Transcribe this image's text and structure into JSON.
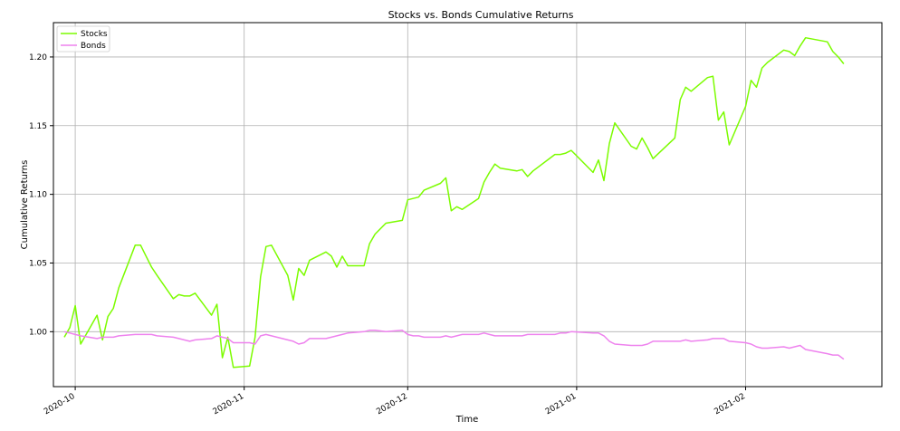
{
  "chart_data": {
    "type": "line",
    "title": "Stocks vs. Bonds Cumulative Returns",
    "xlabel": "Time",
    "ylabel": "Cumulative Returns",
    "xlim": [
      "2020-09-27",
      "2021-02-26"
    ],
    "ylim": [
      0.96,
      1.225
    ],
    "grid": true,
    "legend_position": "top-left",
    "x_ticks": [
      "2020-10-01",
      "2020-11-01",
      "2020-12-01",
      "2021-01-01",
      "2021-02-01"
    ],
    "x_tick_labels": [
      "2020-10",
      "2020-11",
      "2020-12",
      "2021-01",
      "2021-02"
    ],
    "y_ticks": [
      1.0,
      1.05,
      1.1,
      1.15,
      1.2
    ],
    "y_tick_labels": [
      "1.00",
      "1.05",
      "1.10",
      "1.15",
      "1.20"
    ],
    "series": [
      {
        "name": "Stocks",
        "color": "#7cfc00",
        "x": [
          "2020-09-29",
          "2020-09-30",
          "2020-10-01",
          "2020-10-02",
          "2020-10-05",
          "2020-10-06",
          "2020-10-07",
          "2020-10-08",
          "2020-10-09",
          "2020-10-12",
          "2020-10-13",
          "2020-10-14",
          "2020-10-15",
          "2020-10-16",
          "2020-10-19",
          "2020-10-20",
          "2020-10-21",
          "2020-10-22",
          "2020-10-23",
          "2020-10-26",
          "2020-10-27",
          "2020-10-28",
          "2020-10-29",
          "2020-10-30",
          "2020-11-02",
          "2020-11-03",
          "2020-11-04",
          "2020-11-05",
          "2020-11-06",
          "2020-11-09",
          "2020-11-10",
          "2020-11-11",
          "2020-11-12",
          "2020-11-13",
          "2020-11-16",
          "2020-11-17",
          "2020-11-18",
          "2020-11-19",
          "2020-11-20",
          "2020-11-23",
          "2020-11-24",
          "2020-11-25",
          "2020-11-27",
          "2020-11-30",
          "2020-12-01",
          "2020-12-02",
          "2020-12-03",
          "2020-12-04",
          "2020-12-07",
          "2020-12-08",
          "2020-12-09",
          "2020-12-10",
          "2020-12-11",
          "2020-12-14",
          "2020-12-15",
          "2020-12-16",
          "2020-12-17",
          "2020-12-18",
          "2020-12-21",
          "2020-12-22",
          "2020-12-23",
          "2020-12-24",
          "2020-12-28",
          "2020-12-29",
          "2020-12-30",
          "2020-12-31",
          "2021-01-04",
          "2021-01-05",
          "2021-01-06",
          "2021-01-07",
          "2021-01-08",
          "2021-01-11",
          "2021-01-12",
          "2021-01-13",
          "2021-01-14",
          "2021-01-15",
          "2021-01-19",
          "2021-01-20",
          "2021-01-21",
          "2021-01-22",
          "2021-01-25",
          "2021-01-26",
          "2021-01-27",
          "2021-01-28",
          "2021-01-29",
          "2021-02-01",
          "2021-02-02",
          "2021-02-03",
          "2021-02-04",
          "2021-02-05",
          "2021-02-08",
          "2021-02-09",
          "2021-02-10",
          "2021-02-11",
          "2021-02-12",
          "2021-02-16",
          "2021-02-17",
          "2021-02-18",
          "2021-02-19"
        ],
        "values": [
          0.996,
          1.003,
          1.019,
          0.991,
          1.012,
          0.994,
          1.011,
          1.017,
          1.032,
          1.063,
          1.063,
          1.055,
          1.047,
          1.041,
          1.024,
          1.027,
          1.026,
          1.026,
          1.028,
          1.012,
          1.02,
          0.981,
          0.996,
          0.974,
          0.975,
          0.996,
          1.04,
          1.062,
          1.063,
          1.041,
          1.023,
          1.046,
          1.041,
          1.052,
          1.058,
          1.055,
          1.047,
          1.055,
          1.048,
          1.048,
          1.064,
          1.071,
          1.079,
          1.081,
          1.096,
          1.097,
          1.098,
          1.103,
          1.108,
          1.112,
          1.088,
          1.091,
          1.089,
          1.097,
          1.109,
          1.116,
          1.122,
          1.119,
          1.117,
          1.118,
          1.113,
          1.117,
          1.129,
          1.129,
          1.13,
          1.132,
          1.116,
          1.125,
          1.11,
          1.137,
          1.152,
          1.135,
          1.133,
          1.141,
          1.134,
          1.126,
          1.141,
          1.169,
          1.178,
          1.175,
          1.185,
          1.186,
          1.154,
          1.16,
          1.136,
          1.164,
          1.183,
          1.178,
          1.192,
          1.196,
          1.205,
          1.204,
          1.201,
          1.208,
          1.214,
          1.211,
          1.204,
          1.2,
          1.195
        ]
      },
      {
        "name": "Bonds",
        "color": "#ee82ee",
        "x": [
          "2020-09-29",
          "2020-09-30",
          "2020-10-01",
          "2020-10-02",
          "2020-10-05",
          "2020-10-06",
          "2020-10-07",
          "2020-10-08",
          "2020-10-09",
          "2020-10-12",
          "2020-10-13",
          "2020-10-14",
          "2020-10-15",
          "2020-10-16",
          "2020-10-19",
          "2020-10-20",
          "2020-10-21",
          "2020-10-22",
          "2020-10-23",
          "2020-10-26",
          "2020-10-27",
          "2020-10-28",
          "2020-10-29",
          "2020-10-30",
          "2020-11-02",
          "2020-11-03",
          "2020-11-04",
          "2020-11-05",
          "2020-11-06",
          "2020-11-09",
          "2020-11-10",
          "2020-11-11",
          "2020-11-12",
          "2020-11-13",
          "2020-11-16",
          "2020-11-17",
          "2020-11-18",
          "2020-11-19",
          "2020-11-20",
          "2020-11-23",
          "2020-11-24",
          "2020-11-25",
          "2020-11-27",
          "2020-11-30",
          "2020-12-01",
          "2020-12-02",
          "2020-12-03",
          "2020-12-04",
          "2020-12-07",
          "2020-12-08",
          "2020-12-09",
          "2020-12-10",
          "2020-12-11",
          "2020-12-14",
          "2020-12-15",
          "2020-12-16",
          "2020-12-17",
          "2020-12-18",
          "2020-12-21",
          "2020-12-22",
          "2020-12-23",
          "2020-12-24",
          "2020-12-28",
          "2020-12-29",
          "2020-12-30",
          "2020-12-31",
          "2021-01-04",
          "2021-01-05",
          "2021-01-06",
          "2021-01-07",
          "2021-01-08",
          "2021-01-11",
          "2021-01-12",
          "2021-01-13",
          "2021-01-14",
          "2021-01-15",
          "2021-01-19",
          "2021-01-20",
          "2021-01-21",
          "2021-01-22",
          "2021-01-25",
          "2021-01-26",
          "2021-01-27",
          "2021-01-28",
          "2021-01-29",
          "2021-02-01",
          "2021-02-02",
          "2021-02-03",
          "2021-02-04",
          "2021-02-05",
          "2021-02-08",
          "2021-02-09",
          "2021-02-10",
          "2021-02-11",
          "2021-02-12",
          "2021-02-16",
          "2021-02-17",
          "2021-02-18",
          "2021-02-19"
        ],
        "values": [
          1.0,
          0.999,
          0.998,
          0.997,
          0.995,
          0.996,
          0.996,
          0.996,
          0.997,
          0.998,
          0.998,
          0.998,
          0.998,
          0.997,
          0.996,
          0.995,
          0.994,
          0.993,
          0.994,
          0.995,
          0.997,
          0.996,
          0.995,
          0.992,
          0.992,
          0.991,
          0.997,
          0.998,
          0.997,
          0.994,
          0.993,
          0.991,
          0.992,
          0.995,
          0.995,
          0.996,
          0.997,
          0.998,
          0.999,
          1.0,
          1.001,
          1.001,
          1.0,
          1.001,
          0.998,
          0.997,
          0.997,
          0.996,
          0.996,
          0.997,
          0.996,
          0.997,
          0.998,
          0.998,
          0.999,
          0.998,
          0.997,
          0.997,
          0.997,
          0.997,
          0.998,
          0.998,
          0.998,
          0.999,
          0.999,
          1.0,
          0.999,
          0.999,
          0.997,
          0.993,
          0.991,
          0.99,
          0.99,
          0.99,
          0.991,
          0.993,
          0.993,
          0.993,
          0.994,
          0.993,
          0.994,
          0.995,
          0.995,
          0.995,
          0.993,
          0.992,
          0.991,
          0.989,
          0.988,
          0.988,
          0.989,
          0.988,
          0.989,
          0.99,
          0.987,
          0.984,
          0.983,
          0.983,
          0.98
        ]
      }
    ]
  }
}
